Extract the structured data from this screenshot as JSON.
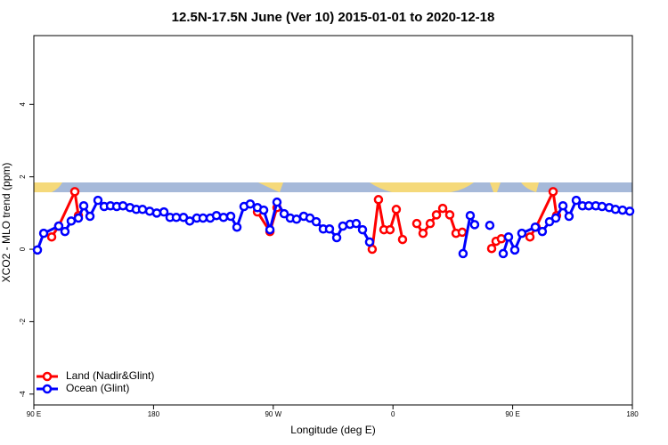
{
  "chart_data": {
    "type": "line",
    "title": "12.5N-17.5N June (Ver 10)   2015-01-01 to 2020-12-18",
    "x_label": "Longitude (deg E)",
    "y_label": "XCO2 - MLO trend (ppm)",
    "xlim": [
      90,
      540
    ],
    "ylim": [
      -4.3,
      5.9
    ],
    "xticks": [
      {
        "value": 90,
        "label": "90 E"
      },
      180,
      {
        "value": 270,
        "label": "90 W"
      },
      {
        "value": 360,
        "label": "0"
      },
      {
        "value": 450,
        "label": "90 E"
      },
      {
        "value": 540,
        "label": "180"
      }
    ],
    "yticks": [
      -4,
      -2,
      0,
      2,
      4
    ],
    "legend": "bottom-left",
    "series": [
      {
        "name": "Land (Nadir&Glint)",
        "color": "#ff0000",
        "x": [
          103.4,
          108.7,
          120.8,
          123.5,
          null,
          258.1,
          267.5,
          272.8,
          null,
          344.4,
          349.1,
          353.2,
          357.8,
          362.5,
          367.2,
          null,
          377.9,
          382.6,
          388.0,
          392.7,
          397.4,
          402.7,
          407.4,
          412.1,
          null,
          434.2,
          437.5,
          441.5,
          null,
          463.0,
          467.6,
          480.4,
          483.0
        ],
        "values": [
          0.34,
          0.64,
          1.59,
          0.93,
          null,
          1.03,
          0.49,
          1.15,
          null,
          0.0,
          1.37,
          0.54,
          0.54,
          1.1,
          0.27,
          null,
          0.71,
          0.44,
          0.71,
          0.95,
          1.13,
          0.95,
          0.44,
          0.47,
          null,
          0.02,
          0.22,
          0.29,
          null,
          0.34,
          0.61,
          1.59,
          0.93
        ]
      },
      {
        "name": "Ocean (Glint)",
        "color": "#0000ff",
        "x": [
          92.7,
          97.4,
          108.7,
          113.4,
          118.1,
          123.5,
          127.5,
          132.2,
          138.2,
          142.9,
          147.6,
          152.3,
          157.0,
          162.3,
          167.0,
          171.7,
          177.1,
          182.4,
          187.8,
          192.4,
          197.1,
          202.5,
          207.2,
          212.5,
          217.2,
          222.6,
          227.3,
          232.6,
          238.0,
          242.7,
          248.0,
          252.7,
          258.1,
          262.8,
          267.5,
          272.8,
          278.2,
          282.8,
          287.5,
          292.9,
          297.6,
          302.3,
          307.6,
          312.3,
          317.7,
          322.3,
          327.7,
          332.4,
          337.1,
          342.4,
          null,
          412.7,
          418.1,
          421.4,
          null,
          432.8,
          null,
          442.9,
          446.9,
          451.6,
          456.9,
          467.0,
          472.3,
          477.7,
          482.4,
          487.8,
          492.4,
          497.8,
          502.5,
          507.2,
          512.5,
          517.2,
          522.6,
          527.3,
          532.6,
          538.0
        ],
        "values": [
          -0.02,
          0.44,
          0.64,
          0.49,
          0.78,
          0.86,
          1.2,
          0.91,
          1.35,
          1.18,
          1.2,
          1.18,
          1.2,
          1.15,
          1.1,
          1.1,
          1.05,
          1.0,
          1.03,
          0.88,
          0.88,
          0.88,
          0.78,
          0.86,
          0.86,
          0.86,
          0.93,
          0.88,
          0.91,
          0.61,
          1.18,
          1.25,
          1.15,
          1.08,
          0.54,
          1.3,
          0.98,
          0.86,
          0.83,
          0.91,
          0.86,
          0.76,
          0.56,
          0.56,
          0.32,
          0.64,
          0.69,
          0.71,
          0.54,
          0.2,
          null,
          -0.12,
          0.93,
          0.68,
          null,
          0.66,
          null,
          -0.12,
          0.34,
          -0.02,
          0.44,
          0.61,
          0.49,
          0.76,
          0.86,
          1.2,
          0.91,
          1.35,
          1.2,
          1.2,
          1.2,
          1.18,
          1.15,
          1.1,
          1.08,
          1.05
        ]
      }
    ]
  }
}
